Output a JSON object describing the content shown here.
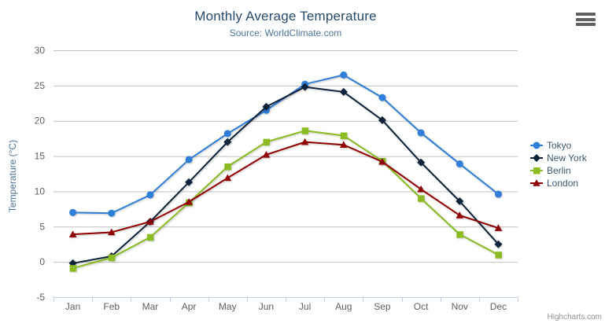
{
  "header": {
    "title": "Monthly Average Temperature",
    "subtitle": "Source: WorldClimate.com"
  },
  "credits": {
    "text": "Highcharts.com"
  },
  "chart_data": {
    "type": "line",
    "title": "Monthly Average Temperature",
    "subtitle": "Source: WorldClimate.com",
    "categories": [
      "Jan",
      "Feb",
      "Mar",
      "Apr",
      "May",
      "Jun",
      "Jul",
      "Aug",
      "Sep",
      "Oct",
      "Nov",
      "Dec"
    ],
    "series": [
      {
        "name": "Tokyo",
        "color": "#2f7ed8",
        "marker": "circle",
        "values": [
          7.0,
          6.9,
          9.5,
          14.5,
          18.2,
          21.5,
          25.2,
          26.5,
          23.3,
          18.3,
          13.9,
          9.6
        ]
      },
      {
        "name": "New York",
        "color": "#0d233a",
        "marker": "diamond",
        "values": [
          -0.2,
          0.8,
          5.7,
          11.3,
          17.0,
          22.0,
          24.8,
          24.1,
          20.1,
          14.1,
          8.6,
          2.5
        ]
      },
      {
        "name": "Berlin",
        "color": "#8bbc21",
        "marker": "square",
        "values": [
          -0.9,
          0.6,
          3.5,
          8.4,
          13.5,
          17.0,
          18.6,
          17.9,
          14.3,
          9.0,
          3.9,
          1.0
        ]
      },
      {
        "name": "London",
        "color": "#910000",
        "marker": "triangle",
        "values": [
          3.9,
          4.2,
          5.7,
          8.5,
          11.9,
          15.2,
          17.0,
          16.6,
          14.2,
          10.3,
          6.6,
          4.8
        ]
      }
    ],
    "xlabel": "",
    "ylabel": "Temperature (°C)",
    "ylim": [
      -5,
      30
    ],
    "ytick_step": 5,
    "grid": true,
    "legend_position": "right"
  },
  "colors": {
    "title": "#274b6d",
    "subtitle": "#4d759e",
    "grid_line": "#c0c0c0",
    "axis_line": "#c0d0e0",
    "tick_label": "#606060",
    "legend_text": "#3e576f",
    "credits": "#909090",
    "menu_icon": "#606060"
  }
}
